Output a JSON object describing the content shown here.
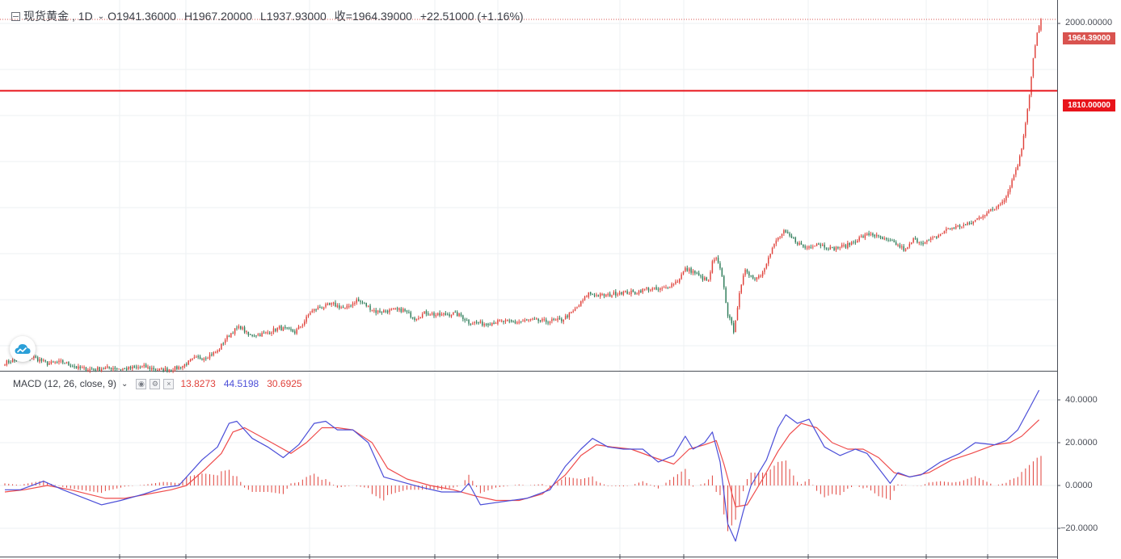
{
  "legend": {
    "symbol": "现货黄金",
    "interval": "1D",
    "open": "O1941.36000",
    "high": "H1967.20000",
    "low": "L1937.93000",
    "close": "收=1964.39000",
    "change": "+22.51000 (+1.16%)"
  },
  "macd_legend": {
    "title": "MACD (12, 26, close, 9)",
    "hist": "13.8273",
    "macd": "44.5198",
    "signal": "30.6925"
  },
  "tags": {
    "last_price": "1964.39000",
    "level": "1810.00000"
  },
  "colors": {
    "up": "#e0423b",
    "down": "#2f7d5a",
    "macd_line": "#4b4ed8",
    "signal_line": "#ef4b4b",
    "histogram": "#e0423b",
    "level_line": "#e8141b",
    "tag_last": "#d9534f",
    "tag_level": "#e8141b",
    "logo": "#2a9fd8"
  },
  "chart_data": [
    {
      "type": "candlestick",
      "title": "现货黄金",
      "interval": "1D",
      "last_ohlc": {
        "open": 1941.36,
        "high": 1967.2,
        "low": 1937.93,
        "close": 1964.39
      },
      "y_ticks": [
        "2000.00000"
      ],
      "ylim": [
        1185,
        2015
      ],
      "horizontal_line": 1810.0,
      "last_price": 1964.39,
      "close_path": [
        [
          0,
          1222
        ],
        [
          7,
          1228
        ],
        [
          15,
          1233
        ],
        [
          22,
          1220
        ],
        [
          30,
          1223
        ],
        [
          38,
          1210
        ],
        [
          46,
          1207
        ],
        [
          55,
          1211
        ],
        [
          62,
          1208
        ],
        [
          72,
          1213
        ],
        [
          80,
          1206
        ],
        [
          88,
          1209
        ],
        [
          92,
          1215
        ],
        [
          98,
          1230
        ],
        [
          104,
          1234
        ],
        [
          110,
          1246
        ],
        [
          114,
          1272
        ],
        [
          118,
          1290
        ],
        [
          122,
          1299
        ],
        [
          126,
          1281
        ],
        [
          134,
          1284
        ],
        [
          142,
          1297
        ],
        [
          150,
          1288
        ],
        [
          154,
          1305
        ],
        [
          158,
          1331
        ],
        [
          162,
          1340
        ],
        [
          170,
          1348
        ],
        [
          176,
          1338
        ],
        [
          182,
          1357
        ],
        [
          186,
          1348
        ],
        [
          192,
          1332
        ],
        [
          198,
          1334
        ],
        [
          206,
          1336
        ],
        [
          212,
          1318
        ],
        [
          218,
          1330
        ],
        [
          224,
          1324
        ],
        [
          232,
          1328
        ],
        [
          236,
          1323
        ],
        [
          240,
          1309
        ],
        [
          248,
          1306
        ],
        [
          256,
          1311
        ],
        [
          264,
          1309
        ],
        [
          272,
          1314
        ],
        [
          280,
          1311
        ],
        [
          288,
          1314
        ],
        [
          294,
          1332
        ],
        [
          298,
          1351
        ],
        [
          302,
          1372
        ],
        [
          306,
          1368
        ],
        [
          312,
          1367
        ],
        [
          318,
          1374
        ],
        [
          326,
          1373
        ],
        [
          332,
          1382
        ],
        [
          338,
          1379
        ],
        [
          342,
          1384
        ],
        [
          348,
          1399
        ],
        [
          352,
          1424
        ],
        [
          356,
          1419
        ],
        [
          360,
          1406
        ],
        [
          364,
          1398
        ],
        [
          366,
          1438
        ],
        [
          368,
          1446
        ],
        [
          371,
          1411
        ],
        [
          374,
          1326
        ],
        [
          377,
          1291
        ],
        [
          380,
          1368
        ],
        [
          383,
          1425
        ],
        [
          387,
          1404
        ],
        [
          391,
          1412
        ],
        [
          395,
          1448
        ],
        [
          399,
          1486
        ],
        [
          403,
          1504
        ],
        [
          408,
          1488
        ],
        [
          414,
          1470
        ],
        [
          420,
          1480
        ],
        [
          428,
          1468
        ],
        [
          436,
          1476
        ],
        [
          442,
          1491
        ],
        [
          448,
          1501
        ],
        [
          455,
          1487
        ],
        [
          460,
          1481
        ],
        [
          466,
          1464
        ],
        [
          470,
          1488
        ],
        [
          476,
          1481
        ],
        [
          482,
          1494
        ],
        [
          488,
          1512
        ],
        [
          494,
          1517
        ],
        [
          500,
          1523
        ],
        [
          506,
          1542
        ],
        [
          512,
          1555
        ],
        [
          518,
          1582
        ],
        [
          521,
          1616
        ],
        [
          524,
          1652
        ],
        [
          526,
          1685
        ],
        [
          528,
          1740
        ],
        [
          530,
          1800
        ],
        [
          532,
          1880
        ],
        [
          534,
          1935
        ],
        [
          536,
          1964.39
        ]
      ],
      "n_bars": 537
    },
    {
      "type": "line",
      "title": "MACD (12, 26, close, 9)",
      "y_ticks": [
        "40.0000",
        "20.0000",
        "0.0000",
        "−20.0000"
      ],
      "ylim": [
        -31,
        52
      ],
      "series": [
        {
          "name": "MACD",
          "values": [
            [
              0,
              -2
            ],
            [
              8,
              -2
            ],
            [
              20,
              2
            ],
            [
              30,
              -2
            ],
            [
              50,
              -9
            ],
            [
              60,
              -7
            ],
            [
              72,
              -4
            ],
            [
              82,
              -1
            ],
            [
              90,
              0
            ],
            [
              102,
              12
            ],
            [
              110,
              18
            ],
            [
              116,
              29
            ],
            [
              120,
              30
            ],
            [
              128,
              22
            ],
            [
              136,
              18
            ],
            [
              144,
              13
            ],
            [
              152,
              19
            ],
            [
              160,
              29
            ],
            [
              166,
              30
            ],
            [
              172,
              26
            ],
            [
              180,
              26
            ],
            [
              188,
              20
            ],
            [
              196,
              4
            ],
            [
              204,
              2
            ],
            [
              216,
              -1
            ],
            [
              226,
              -3
            ],
            [
              236,
              -3
            ],
            [
              240,
              1
            ],
            [
              246,
              -9
            ],
            [
              254,
              -8
            ],
            [
              262,
              -7
            ],
            [
              270,
              -6
            ],
            [
              282,
              -2
            ],
            [
              290,
              9
            ],
            [
              298,
              17
            ],
            [
              304,
              22
            ],
            [
              312,
              18
            ],
            [
              320,
              17
            ],
            [
              330,
              17
            ],
            [
              338,
              11
            ],
            [
              346,
              14
            ],
            [
              352,
              23
            ],
            [
              356,
              17
            ],
            [
              362,
              20
            ],
            [
              366,
              25
            ],
            [
              370,
              11
            ],
            [
              374,
              -18
            ],
            [
              378,
              -26
            ],
            [
              382,
              -12
            ],
            [
              386,
              0
            ],
            [
              394,
              12
            ],
            [
              400,
              27
            ],
            [
              404,
              33
            ],
            [
              410,
              29
            ],
            [
              416,
              31
            ],
            [
              424,
              18
            ],
            [
              432,
              14
            ],
            [
              440,
              17
            ],
            [
              446,
              15
            ],
            [
              452,
              8
            ],
            [
              458,
              1
            ],
            [
              462,
              6
            ],
            [
              468,
              4
            ],
            [
              474,
              5
            ],
            [
              484,
              11
            ],
            [
              494,
              15
            ],
            [
              502,
              20
            ],
            [
              512,
              19
            ],
            [
              518,
              21
            ],
            [
              524,
              26
            ],
            [
              530,
              36
            ],
            [
              535,
              44.52
            ]
          ]
        },
        {
          "name": "Signal",
          "values": [
            [
              0,
              -3
            ],
            [
              10,
              -2
            ],
            [
              22,
              0
            ],
            [
              34,
              -2
            ],
            [
              52,
              -6
            ],
            [
              62,
              -6
            ],
            [
              74,
              -4
            ],
            [
              86,
              -2
            ],
            [
              94,
              0
            ],
            [
              104,
              8
            ],
            [
              112,
              15
            ],
            [
              118,
              25
            ],
            [
              124,
              27
            ],
            [
              132,
              23
            ],
            [
              140,
              19
            ],
            [
              148,
              15
            ],
            [
              156,
              20
            ],
            [
              164,
              27
            ],
            [
              172,
              27
            ],
            [
              180,
              26
            ],
            [
              190,
              20
            ],
            [
              198,
              8
            ],
            [
              208,
              3
            ],
            [
              220,
              0
            ],
            [
              232,
              -2
            ],
            [
              244,
              -5
            ],
            [
              254,
              -7
            ],
            [
              266,
              -7
            ],
            [
              278,
              -4
            ],
            [
              290,
              5
            ],
            [
              298,
              14
            ],
            [
              306,
              19
            ],
            [
              314,
              18
            ],
            [
              324,
              17
            ],
            [
              336,
              13
            ],
            [
              346,
              10
            ],
            [
              354,
              17
            ],
            [
              362,
              19
            ],
            [
              368,
              21
            ],
            [
              372,
              10
            ],
            [
              378,
              -10
            ],
            [
              384,
              -9
            ],
            [
              392,
              3
            ],
            [
              400,
              16
            ],
            [
              406,
              24
            ],
            [
              412,
              29
            ],
            [
              420,
              27
            ],
            [
              428,
              20
            ],
            [
              436,
              17
            ],
            [
              444,
              17
            ],
            [
              452,
              13
            ],
            [
              460,
              6
            ],
            [
              468,
              4
            ],
            [
              478,
              6
            ],
            [
              490,
              12
            ],
            [
              500,
              15
            ],
            [
              512,
              19
            ],
            [
              520,
              20
            ],
            [
              526,
              23
            ],
            [
              535,
              30.69
            ]
          ]
        }
      ],
      "histogram": "MACD - Signal"
    }
  ]
}
